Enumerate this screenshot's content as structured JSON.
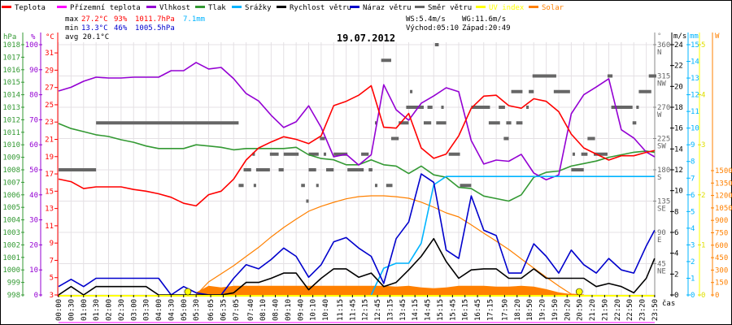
{
  "chart_data": {
    "type": "line",
    "title": "19.07.2012",
    "xlabel": "čas",
    "legend": [
      {
        "label": "Teplota",
        "color": "#ff0000"
      },
      {
        "label": "Přízemní teplota",
        "color": "#ff00ff"
      },
      {
        "label": "Vlhkost",
        "color": "#9400d3"
      },
      {
        "label": "Tlak",
        "color": "#339933"
      },
      {
        "label": "Srážky",
        "color": "#00b4ff"
      },
      {
        "label": "Rychlost větru",
        "color": "#000000"
      },
      {
        "label": "Náraz větru",
        "color": "#0000cc"
      },
      {
        "label": "Směr větru",
        "color": "#666666"
      },
      {
        "label": "UV index",
        "color": "#ffff00"
      },
      {
        "label": "Solar",
        "color": "#ff8000"
      }
    ],
    "stats": {
      "max_label": "max",
      "max_temp": "27.2°C",
      "max_hum": "93%",
      "max_press": "1011.7hPa",
      "rain_total": "7.1mm",
      "min_label": "min",
      "min_temp": "13.3°C",
      "min_hum": "46%",
      "min_press": "1005.5hPa",
      "avg": "avg 20.1°C",
      "ws": "WS:5.4m/s",
      "wg": "WG:11.6m/s",
      "sunrise": "Východ:05:10",
      "sunset": "Západ:20:49"
    },
    "sunrise_hours": 5.17,
    "sunset_hours": 20.82,
    "axes": {
      "hPa": {
        "label": "hPa",
        "range": [
          998,
          1018
        ],
        "ticks": [
          "1018",
          "1017",
          "1016",
          "1015",
          "1014",
          "1013",
          "1012",
          "1011",
          "1010",
          "1009",
          "1008",
          "1007",
          "1006",
          "1005",
          "1004",
          "1003",
          "1002",
          "1001",
          "1000",
          "999",
          "998"
        ]
      },
      "percent": {
        "label": "%",
        "range": [
          0,
          100
        ],
        "ticks": [
          "100",
          "90",
          "80",
          "70",
          "60",
          "50",
          "40",
          "30",
          "20",
          "10",
          "0"
        ]
      },
      "celsius": {
        "label": "°C",
        "range": [
          3,
          31.95
        ],
        "ticks": [
          "31",
          "29",
          "27",
          "25",
          "23",
          "21",
          "19",
          "17",
          "15",
          "13",
          "11",
          "9",
          "7",
          "5",
          "3"
        ]
      },
      "direction": {
        "label": "°",
        "range": [
          0,
          360
        ],
        "ticks": [
          {
            "v": "360",
            "d": "N"
          },
          {
            "v": "315",
            "d": "NW"
          },
          {
            "v": "270",
            "d": "W"
          },
          {
            "v": "225",
            "d": "SW"
          },
          {
            "v": "180",
            "d": "S"
          },
          {
            "v": "135",
            "d": "SE"
          },
          {
            "v": "90",
            "d": "E"
          },
          {
            "v": "45",
            "d": "NE"
          }
        ]
      },
      "ms": {
        "label": "m/s",
        "range": [
          0,
          24
        ],
        "ticks": [
          "24",
          "22",
          "20",
          "18",
          "16",
          "14",
          "12",
          "10",
          "8",
          "6",
          "4",
          "2",
          "0"
        ]
      },
      "mm": {
        "label": "mm",
        "range": [
          0,
          15
        ],
        "ticks": [
          "15",
          "14",
          "13",
          "12",
          "11",
          "10",
          "9",
          "8",
          "7",
          "6",
          "5",
          "4",
          "3",
          "2",
          "1",
          "0"
        ]
      },
      "uv": {
        "label": "",
        "range": [
          0,
          5
        ],
        "ticks": [
          "5",
          "4",
          "3",
          "2",
          "1",
          "0"
        ]
      },
      "W": {
        "label": "W",
        "range": [
          0,
          1500
        ],
        "ticks": [
          "1500",
          "1350",
          "1200",
          "1050",
          "900",
          "750",
          "600",
          "450",
          "300",
          "150",
          "0"
        ]
      }
    },
    "x_ticks": [
      "00:00",
      "00:30",
      "01:00",
      "01:30",
      "02:00",
      "02:30",
      "03:00",
      "03:30",
      "04:00",
      "04:30",
      "05:00",
      "05:30",
      "06:05",
      "06:35",
      "07:05",
      "07:40",
      "08:10",
      "08:40",
      "09:10",
      "09:40",
      "10:10",
      "10:40",
      "11:15",
      "11:45",
      "12:15",
      "12:45",
      "13:15",
      "13:45",
      "14:15",
      "14:45",
      "15:15",
      "15:45",
      "16:15",
      "16:45",
      "17:15",
      "17:50",
      "18:20",
      "18:50",
      "19:20",
      "19:50",
      "20:20",
      "20:50",
      "21:20",
      "21:50",
      "22:20",
      "22:50",
      "23:20",
      "23:50"
    ],
    "x_hours": [
      0,
      0.5,
      1,
      1.5,
      2,
      2.5,
      3,
      3.5,
      4,
      4.5,
      5,
      5.5,
      6,
      6.5,
      7,
      7.5,
      8,
      8.5,
      9,
      9.5,
      10,
      10.5,
      11,
      11.5,
      12,
      12.5,
      13,
      13.5,
      14,
      14.5,
      15,
      15.5,
      16,
      16.5,
      17,
      17.5,
      18,
      18.5,
      19,
      19.5,
      20,
      20.5,
      21,
      21.5,
      22,
      22.5,
      23,
      23.5,
      23.83
    ],
    "series": [
      {
        "name": "Teplota",
        "axis": "celsius",
        "color": "#ff0000",
        "values": [
          16.4,
          16.1,
          15.3,
          15.5,
          15.5,
          15.5,
          15.2,
          15.0,
          14.7,
          14.3,
          13.6,
          13.3,
          14.6,
          15.0,
          16.4,
          18.6,
          20.0,
          20.7,
          21.3,
          21.0,
          20.5,
          21.4,
          24.9,
          25.4,
          26.1,
          27.2,
          22.4,
          22.3,
          24.0,
          20.0,
          18.8,
          19.3,
          21.4,
          24.6,
          26.0,
          26.1,
          24.9,
          24.6,
          25.7,
          25.4,
          24.2,
          21.6,
          20.0,
          19.3,
          18.6,
          19.1,
          19.1,
          19.5,
          19.7
        ]
      },
      {
        "name": "Vlhkost",
        "axis": "percent",
        "color": "#9400d3",
        "values": [
          81.5,
          83,
          85.4,
          87,
          86.7,
          86.7,
          87,
          87,
          87,
          89.6,
          89.6,
          92.9,
          90.3,
          90.9,
          86.4,
          80.5,
          77.5,
          71.8,
          66.9,
          69.2,
          75.6,
          66.9,
          55.2,
          56.2,
          51.9,
          56,
          84,
          74,
          69.8,
          76.6,
          79.5,
          82.8,
          81.2,
          61.7,
          52.3,
          53.9,
          53.4,
          56.2,
          48.7,
          46,
          48,
          72.4,
          80,
          83.1,
          86.4,
          66,
          62.7,
          57.1,
          55.2
        ]
      },
      {
        "name": "Tlak",
        "axis": "hPa",
        "color": "#339933",
        "values": [
          1011.7,
          1011.3,
          1011.05,
          1010.8,
          1010.66,
          1010.4,
          1010.2,
          1009.9,
          1009.7,
          1009.7,
          1009.7,
          1010.0,
          1009.9,
          1009.8,
          1009.6,
          1009.7,
          1009.7,
          1009.7,
          1009.7,
          1009.8,
          1009.2,
          1008.9,
          1008.8,
          1008.4,
          1008.4,
          1008.8,
          1008.4,
          1008.3,
          1007.7,
          1008.3,
          1007.6,
          1007.4,
          1006.6,
          1006.5,
          1005.9,
          1005.7,
          1005.5,
          1006.0,
          1007.4,
          1007.8,
          1007.9,
          1008.3,
          1008.5,
          1008.7,
          1009.0,
          1009.2,
          1009.4,
          1009.5,
          1009.4
        ]
      },
      {
        "name": "Rychlost větru",
        "axis": "ms",
        "color": "#000000",
        "values": [
          0,
          0.8,
          0,
          0.8,
          0.8,
          0.8,
          0.8,
          0.8,
          0,
          0,
          0,
          0,
          0,
          0,
          0.2,
          1.2,
          1.2,
          1.6,
          2.1,
          2.1,
          0.5,
          1.6,
          2.5,
          2.5,
          1.7,
          2.1,
          0.8,
          1.2,
          2.4,
          3.7,
          5.4,
          3.2,
          1.6,
          2.4,
          2.5,
          2.5,
          1.6,
          1.6,
          2.5,
          1.6,
          1.6,
          1.6,
          1.6,
          0.8,
          1.1,
          0.8,
          0.2,
          1.6,
          3.5
        ]
      },
      {
        "name": "Náraz větru",
        "axis": "ms",
        "color": "#0000cc",
        "values": [
          0.8,
          1.5,
          0.8,
          1.6,
          1.6,
          1.6,
          1.6,
          1.6,
          1.6,
          0,
          0.8,
          0.2,
          0,
          0,
          1.6,
          2.9,
          2.5,
          3.4,
          4.5,
          3.7,
          1.7,
          2.9,
          5.1,
          5.5,
          4.5,
          3.7,
          1.1,
          5.4,
          7.0,
          11.6,
          10.8,
          4.3,
          3.5,
          9.5,
          6.2,
          5.7,
          2.1,
          2.1,
          4.9,
          3.7,
          2.1,
          4.3,
          2.9,
          2.1,
          3.5,
          2.4,
          2.1,
          4.7,
          6.2
        ]
      },
      {
        "name": "Srážky",
        "axis": "mm",
        "color": "#00b4ff",
        "values": [
          null,
          null,
          null,
          null,
          null,
          null,
          null,
          null,
          null,
          null,
          null,
          null,
          null,
          null,
          null,
          null,
          null,
          null,
          null,
          null,
          null,
          null,
          null,
          null,
          null,
          0,
          1.6,
          1.9,
          1.9,
          3.1,
          6.6,
          7.1,
          7.1,
          7.1,
          7.1,
          7.1,
          7.1,
          7.1,
          7.1,
          7.1,
          7.1,
          7.1,
          7.1,
          7.1,
          7.1,
          7.1,
          7.1,
          7.1,
          7.1
        ]
      },
      {
        "name": "Solar",
        "axis": "W",
        "color": "#ff8000",
        "values": [
          null,
          null,
          null,
          null,
          null,
          null,
          null,
          null,
          null,
          null,
          null,
          0,
          157,
          255,
          353,
          465,
          575,
          700,
          814,
          915,
          1010,
          1070,
          1118,
          1160,
          1186,
          1196,
          1196,
          1185,
          1167,
          1120,
          1059,
          990,
          941,
          845,
          745,
          650,
          549,
          435,
          324,
          215,
          108,
          10,
          0,
          null,
          null,
          null,
          null,
          null,
          null
        ]
      }
    ],
    "solar_area": {
      "axis": "W",
      "color": "#ff8000",
      "values": [
        null,
        null,
        null,
        null,
        null,
        null,
        null,
        null,
        null,
        null,
        null,
        30,
        110,
        90,
        110,
        110,
        110,
        110,
        110,
        110,
        110,
        110,
        110,
        110,
        110,
        110,
        110,
        100,
        110,
        90,
        80,
        90,
        110,
        110,
        110,
        100,
        100,
        110,
        100,
        70,
        30,
        10,
        0,
        null,
        null,
        null,
        null,
        null,
        null
      ]
    },
    "wind_direction_segments": [
      [
        0,
        1.5,
        180
      ],
      [
        1.5,
        7.2,
        247.5
      ],
      [
        7.2,
        7.4,
        157.5
      ],
      [
        7.4,
        7.7,
        180
      ],
      [
        7.75,
        7.85,
        202.5
      ],
      [
        7.8,
        7.9,
        157.5
      ],
      [
        7.9,
        8.45,
        180
      ],
      [
        8.45,
        8.8,
        202.5
      ],
      [
        8.8,
        9,
        180
      ],
      [
        9,
        9.6,
        202.5
      ],
      [
        9.7,
        9.85,
        157.5
      ],
      [
        9.9,
        10,
        135
      ],
      [
        10,
        10.4,
        202.5
      ],
      [
        10,
        10.3,
        180
      ],
      [
        10.3,
        10.4,
        157.5
      ],
      [
        10.45,
        10.65,
        225
      ],
      [
        10.6,
        10.7,
        202.5
      ],
      [
        10.7,
        11,
        180
      ],
      [
        11,
        11.55,
        202.5
      ],
      [
        11.55,
        12.2,
        180
      ],
      [
        12.1,
        12.4,
        202.5
      ],
      [
        12.4,
        12.55,
        180
      ],
      [
        12.65,
        12.75,
        247.5
      ],
      [
        12.65,
        12.75,
        157.5
      ],
      [
        12.9,
        13.3,
        337.5
      ],
      [
        13.1,
        13.35,
        157.5
      ],
      [
        13.3,
        13.6,
        225
      ],
      [
        13.6,
        14,
        247.5
      ],
      [
        14.05,
        14.15,
        292.5
      ],
      [
        13.9,
        14.6,
        270
      ],
      [
        14.6,
        14.9,
        247.5
      ],
      [
        14.75,
        14.95,
        270
      ],
      [
        15.05,
        15.2,
        360
      ],
      [
        15.1,
        15.5,
        247.5
      ],
      [
        15.3,
        15.4,
        270
      ],
      [
        15.6,
        16.05,
        202.5
      ],
      [
        16.05,
        16.5,
        157.5
      ],
      [
        16.5,
        17.25,
        270
      ],
      [
        17.2,
        17.65,
        247.5
      ],
      [
        17.6,
        17.85,
        270
      ],
      [
        17.8,
        18,
        225
      ],
      [
        17.9,
        18.1,
        247.5
      ],
      [
        18.1,
        18.55,
        292.5
      ],
      [
        18.3,
        18.55,
        247.5
      ],
      [
        18.7,
        18.8,
        270
      ],
      [
        18.8,
        19,
        292.5
      ],
      [
        18.95,
        19.9,
        315
      ],
      [
        19.8,
        20.45,
        292.5
      ],
      [
        20.5,
        21,
        180
      ],
      [
        20.55,
        20.65,
        202.5
      ],
      [
        20.9,
        21.15,
        202.5
      ],
      [
        21.15,
        21.45,
        225
      ],
      [
        21.4,
        21.95,
        202.5
      ],
      [
        21.95,
        22.15,
        315
      ],
      [
        22.1,
        22.95,
        270
      ],
      [
        22.95,
        23.1,
        247.5
      ],
      [
        23.1,
        23.2,
        270
      ],
      [
        23.2,
        23.7,
        292.5
      ],
      [
        23.6,
        23.9,
        315
      ]
    ]
  }
}
